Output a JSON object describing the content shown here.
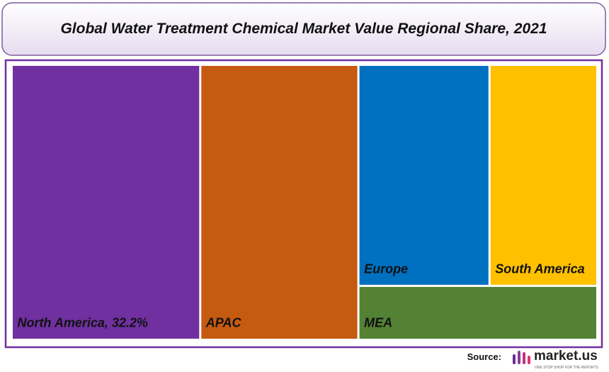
{
  "chart_data": {
    "type": "treemap",
    "title": "Global Water Treatment Chemical Market Value Regional Share, 2021",
    "categories": [
      "North America, 32.2%",
      "APAC",
      "Europe",
      "South America",
      "MEA"
    ],
    "values": [
      32.2,
      27.0,
      18.0,
      14.8,
      8.0
    ],
    "colors": [
      "#7030a0",
      "#c55a11",
      "#0070c0",
      "#ffc000",
      "#548235"
    ]
  },
  "footer": {
    "source": "Source:",
    "logo_text": "market.us",
    "logo_tagline": "ONE STOP SHOP FOR THE REPORTS"
  }
}
